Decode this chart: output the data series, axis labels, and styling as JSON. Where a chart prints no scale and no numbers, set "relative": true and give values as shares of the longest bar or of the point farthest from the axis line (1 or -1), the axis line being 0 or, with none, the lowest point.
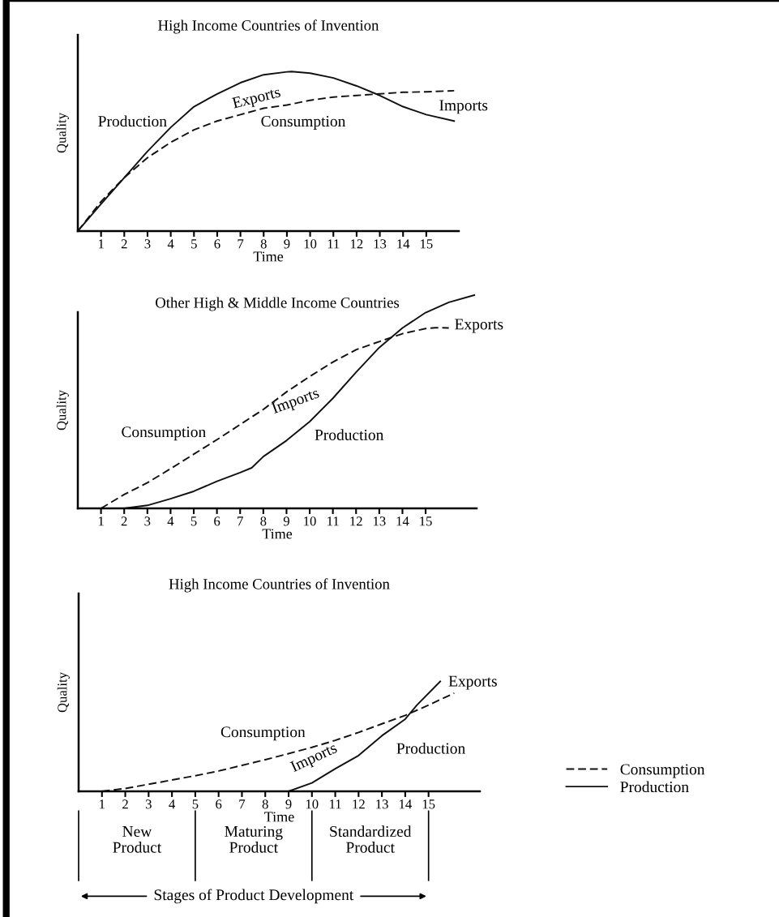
{
  "chart_data": [
    {
      "type": "line",
      "relative": true,
      "title": "High Income Countries of Invention",
      "xlabel": "Time",
      "ylabel": "Quality",
      "xlim": [
        0,
        16.4
      ],
      "xticks": [
        1,
        2,
        3,
        4,
        5,
        6,
        7,
        8,
        9,
        10,
        11,
        12,
        13,
        14,
        15
      ],
      "legend": false,
      "grid": false,
      "marker": "none",
      "series": [
        {
          "color": "#111111",
          "line_style": "solid",
          "x": [
            0,
            1,
            2,
            3,
            4,
            5,
            6,
            7,
            8,
            9,
            9.2,
            10,
            11,
            12,
            13,
            14,
            15,
            16.2
          ],
          "values": [
            0,
            0.17,
            0.335,
            0.5,
            0.65,
            0.78,
            0.86,
            0.93,
            0.98,
            0.998,
            1,
            0.99,
            0.96,
            0.91,
            0.85,
            0.78,
            0.73,
            0.69
          ]
        },
        {
          "color": "#111111",
          "line_style": "dashed",
          "x": [
            0,
            1,
            2,
            3,
            4,
            5,
            6,
            7,
            8,
            9,
            10,
            11,
            12,
            13,
            14,
            15,
            16.2
          ],
          "values": [
            0,
            0.185,
            0.335,
            0.46,
            0.556,
            0.635,
            0.69,
            0.73,
            0.77,
            0.79,
            0.82,
            0.84,
            0.85,
            0.86,
            0.87,
            0.873,
            0.88
          ]
        }
      ],
      "annotations": [
        "Production",
        "Exports",
        "Consumption",
        "Imports"
      ]
    },
    {
      "type": "line",
      "relative": true,
      "title": "Other High & Middle Income Countries",
      "xlabel": "Time",
      "ylabel": "Quality",
      "xlim": [
        0,
        17.2
      ],
      "xticks": [
        1,
        2,
        3,
        4,
        5,
        6,
        7,
        8,
        9,
        10,
        11,
        12,
        13,
        14,
        15
      ],
      "legend": false,
      "grid": false,
      "marker": "none",
      "series": [
        {
          "color": "#111111",
          "line_style": "solid",
          "x": [
            2,
            3,
            4,
            5,
            6,
            7,
            7.5,
            8,
            9,
            10,
            11,
            12,
            13,
            14,
            15,
            16,
            17.1
          ],
          "values": [
            0,
            0.014,
            0.045,
            0.08,
            0.127,
            0.168,
            0.19,
            0.243,
            0.318,
            0.407,
            0.516,
            0.638,
            0.754,
            0.846,
            0.918,
            0.966,
            1
          ]
        },
        {
          "color": "#111111",
          "line_style": "dashed",
          "x": [
            1,
            2,
            3,
            4,
            5,
            6,
            7,
            8,
            9,
            10,
            11,
            12,
            13,
            14,
            15,
            15.4,
            16
          ],
          "values": [
            0,
            0.065,
            0.12,
            0.186,
            0.254,
            0.322,
            0.393,
            0.464,
            0.546,
            0.618,
            0.686,
            0.744,
            0.782,
            0.819,
            0.843,
            0.847,
            0.846
          ]
        }
      ],
      "annotations": [
        "Consumption",
        "Imports",
        "Production",
        "Exports"
      ]
    },
    {
      "type": "line",
      "relative": true,
      "title": "High Income Countries of Invention",
      "xlabel": "Time",
      "ylabel": "Quality",
      "xlim": [
        0,
        17.2
      ],
      "xticks": [
        1,
        2,
        3,
        4,
        5,
        6,
        7,
        8,
        9,
        10,
        11,
        12,
        13,
        14,
        15
      ],
      "legend": "right",
      "grid": false,
      "marker": "none",
      "series": [
        {
          "name": "Consumption",
          "color": "#111111",
          "line_style": "dashed",
          "x": [
            1,
            2,
            3,
            4,
            5,
            6,
            7,
            8,
            9,
            10,
            11,
            12,
            13,
            14,
            15,
            16.1
          ],
          "values": [
            0,
            0.026,
            0.064,
            0.103,
            0.142,
            0.185,
            0.236,
            0.288,
            0.343,
            0.4,
            0.464,
            0.536,
            0.614,
            0.691,
            0.785,
            0.893
          ]
        },
        {
          "name": "Production",
          "color": "#111111",
          "line_style": "solid",
          "x": [
            9,
            10,
            11,
            12,
            13,
            14,
            14.5,
            15.5
          ],
          "values": [
            0,
            0.077,
            0.206,
            0.326,
            0.506,
            0.657,
            0.785,
            1
          ]
        }
      ],
      "annotations": [
        "Consumption",
        "Imports",
        "Production",
        "Exports",
        "New\nProduct",
        "Maturing\nProduct",
        "Standardized\nProduct",
        "Stages of Product Development"
      ]
    }
  ]
}
